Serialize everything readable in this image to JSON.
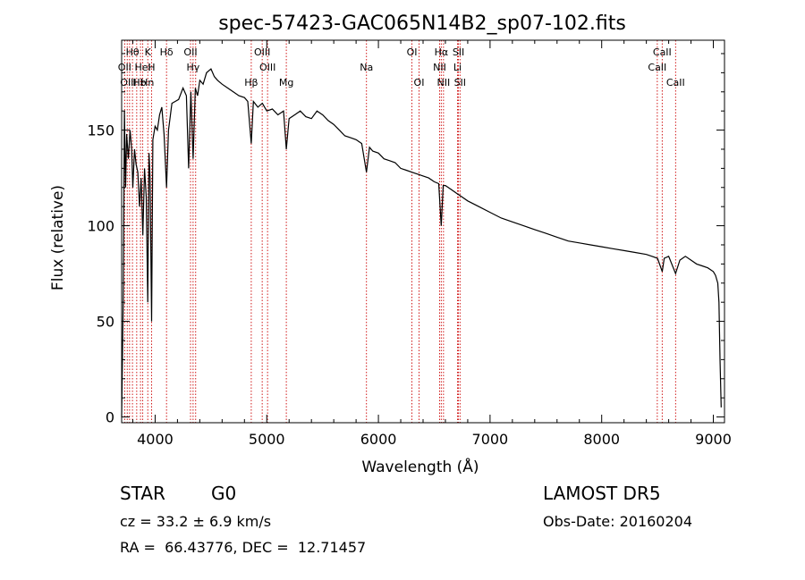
{
  "chart_data": {
    "type": "line",
    "title": "spec-57423-GAC065N14B2_sp07-102.fits",
    "xlabel": "Wavelength (Å)",
    "ylabel": "Flux (relative)",
    "xlim": [
      3700,
      9100
    ],
    "ylim": [
      -3,
      197
    ],
    "xticks": [
      4000,
      5000,
      6000,
      7000,
      8000,
      9000
    ],
    "yticks": [
      0,
      50,
      100,
      150
    ],
    "xtick_labels": [
      "4000",
      "5000",
      "6000",
      "7000",
      "8000",
      "9000"
    ],
    "ytick_labels": [
      "0",
      "50",
      "100",
      "150"
    ],
    "grid": false,
    "spectrum": {
      "x": [
        3700,
        3715,
        3725,
        3735,
        3745,
        3760,
        3775,
        3790,
        3800,
        3815,
        3830,
        3845,
        3860,
        3875,
        3890,
        3905,
        3920,
        3934,
        3945,
        3955,
        3968,
        3980,
        4000,
        4020,
        4040,
        4060,
        4080,
        4102,
        4120,
        4150,
        4180,
        4210,
        4250,
        4280,
        4300,
        4320,
        4340,
        4360,
        4380,
        4400,
        4430,
        4460,
        4500,
        4530,
        4560,
        4600,
        4650,
        4700,
        4750,
        4800,
        4830,
        4861,
        4880,
        4920,
        4960,
        5000,
        5050,
        5100,
        5150,
        5175,
        5200,
        5250,
        5300,
        5350,
        5400,
        5450,
        5500,
        5550,
        5600,
        5650,
        5700,
        5750,
        5800,
        5850,
        5893,
        5920,
        5950,
        6000,
        6050,
        6100,
        6150,
        6200,
        6250,
        6300,
        6350,
        6400,
        6450,
        6500,
        6540,
        6563,
        6580,
        6600,
        6650,
        6700,
        6750,
        6800,
        6900,
        7000,
        7100,
        7200,
        7300,
        7400,
        7500,
        7600,
        7700,
        7800,
        7900,
        8000,
        8100,
        8200,
        8300,
        8400,
        8450,
        8500,
        8542,
        8560,
        8600,
        8662,
        8700,
        8750,
        8800,
        8850,
        8900,
        8950,
        9000,
        9020,
        9040,
        9050,
        9060,
        9070
      ],
      "y": [
        0,
        66,
        160,
        120,
        148,
        135,
        150,
        140,
        120,
        140,
        132,
        128,
        110,
        125,
        95,
        130,
        115,
        60,
        138,
        125,
        50,
        145,
        152,
        150,
        158,
        162,
        148,
        120,
        150,
        164,
        165,
        166,
        172,
        168,
        130,
        170,
        135,
        172,
        168,
        176,
        174,
        180,
        182,
        178,
        176,
        174,
        172,
        170,
        168,
        167,
        165,
        143,
        165,
        162,
        164,
        160,
        161,
        158,
        160,
        140,
        156,
        158,
        160,
        157,
        156,
        160,
        158,
        155,
        153,
        150,
        147,
        146,
        145,
        143,
        128,
        141,
        139,
        138,
        135,
        134,
        133,
        130,
        129,
        128,
        127,
        126,
        125,
        123,
        122,
        100,
        121,
        121,
        119,
        117,
        115,
        113,
        110,
        107,
        104,
        102,
        100,
        98,
        96,
        94,
        92,
        91,
        90,
        89,
        88,
        87,
        86,
        85,
        84,
        83,
        76,
        83,
        84,
        75,
        82,
        84,
        82,
        80,
        79,
        78,
        76,
        74,
        70,
        60,
        30,
        5
      ]
    },
    "line_labels": [
      {
        "label": "Hθ",
        "x": 3797,
        "row": 1
      },
      {
        "label": "K",
        "x": 3934,
        "row": 1
      },
      {
        "label": "Hδ",
        "x": 4102,
        "row": 1
      },
      {
        "label": "OII",
        "x": 4317,
        "row": 1
      },
      {
        "label": "OIII",
        "x": 4959,
        "row": 1
      },
      {
        "label": "OI",
        "x": 6300,
        "row": 1
      },
      {
        "label": "Hα",
        "x": 6563,
        "row": 1
      },
      {
        "label": "SII",
        "x": 6717,
        "row": 1
      },
      {
        "label": "CaII",
        "x": 8542,
        "row": 1
      },
      {
        "label": "OII",
        "x": 3727,
        "row": 2
      },
      {
        "label": "HeI",
        "x": 3889,
        "row": 2
      },
      {
        "label": "H",
        "x": 3968,
        "row": 2
      },
      {
        "label": "Hγ",
        "x": 4340,
        "row": 2
      },
      {
        "label": "OIII",
        "x": 5007,
        "row": 2
      },
      {
        "label": "Na",
        "x": 5893,
        "row": 2
      },
      {
        "label": "NII",
        "x": 6548,
        "row": 2
      },
      {
        "label": "Li",
        "x": 6708,
        "row": 2
      },
      {
        "label": "CaII",
        "x": 8498,
        "row": 2
      },
      {
        "label": "OIII",
        "x": 3760,
        "row": 3
      },
      {
        "label": "Hb",
        "x": 3860,
        "row": 3
      },
      {
        "label": "Hn",
        "x": 3930,
        "row": 3
      },
      {
        "label": "Hβ",
        "x": 4861,
        "row": 3
      },
      {
        "label": "Mg",
        "x": 5175,
        "row": 3
      },
      {
        "label": "OI",
        "x": 6364,
        "row": 3
      },
      {
        "label": "NII",
        "x": 6583,
        "row": 3
      },
      {
        "label": "SII",
        "x": 6731,
        "row": 3
      },
      {
        "label": "CaII",
        "x": 8662,
        "row": 3
      }
    ],
    "marker_lines": [
      3727,
      3750,
      3771,
      3797,
      3835,
      3869,
      3889,
      3934,
      3968,
      4102,
      4317,
      4340,
      4363,
      4861,
      4959,
      5007,
      5175,
      5893,
      6300,
      6364,
      6548,
      6563,
      6583,
      6708,
      6717,
      6731,
      8498,
      8542,
      8662
    ]
  },
  "footer": {
    "object_type": "STAR",
    "subclass": "G0",
    "survey": "LAMOST DR5",
    "redshift": "cz = 33.2 ± 6.9 km/s",
    "obs_date": "Obs-Date: 20160204",
    "coords": "RA =  66.43776, DEC =  12.71457"
  }
}
